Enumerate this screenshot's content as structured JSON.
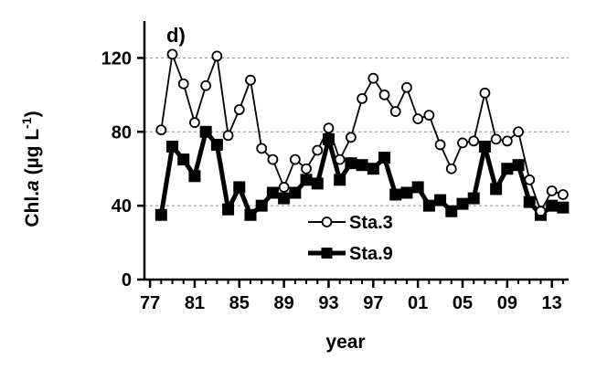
{
  "chart_data": {
    "type": "line",
    "panel_label": "d)",
    "xlabel": "year",
    "ylabel_main": "Chl.",
    "ylabel_italic": "a",
    "ylabel_unit": " (µg L",
    "ylabel_sup": "-1",
    "ylabel_close": ")",
    "ylim": [
      0,
      140
    ],
    "yticks": [
      0,
      40,
      80,
      120
    ],
    "xlim": [
      1976.5,
      2014.5
    ],
    "xticks": [
      1977,
      1981,
      1985,
      1989,
      1993,
      1997,
      2001,
      2005,
      2009,
      2013
    ],
    "xtick_labels": [
      "77",
      "81",
      "85",
      "89",
      "93",
      "97",
      "01",
      "05",
      "09",
      "13"
    ],
    "grid": "horizontal dashed",
    "legend_position": "lower-middle",
    "x": [
      1978,
      1979,
      1980,
      1981,
      1982,
      1983,
      1984,
      1985,
      1986,
      1987,
      1988,
      1989,
      1990,
      1991,
      1992,
      1993,
      1994,
      1995,
      1996,
      1997,
      1998,
      1999,
      2000,
      2001,
      2002,
      2003,
      2004,
      2005,
      2006,
      2007,
      2008,
      2009,
      2010,
      2011,
      2012,
      2013,
      2014
    ],
    "series": [
      {
        "name": "Sta.3",
        "marker": "open-circle",
        "color": "#000000",
        "values": [
          81,
          122,
          106,
          85,
          105,
          121,
          78,
          92,
          108,
          71,
          65,
          50,
          65,
          60,
          70,
          82,
          65,
          77,
          98,
          109,
          100,
          91,
          104,
          87,
          89,
          73,
          60,
          74,
          75,
          101,
          76,
          75,
          80,
          54,
          37,
          48,
          46
        ]
      },
      {
        "name": "Sta.9",
        "marker": "filled-square",
        "color": "#000000",
        "values": [
          35,
          72,
          65,
          56,
          80,
          73,
          38,
          50,
          35,
          40,
          47,
          44,
          47,
          54,
          52,
          76,
          54,
          63,
          62,
          60,
          66,
          46,
          47,
          50,
          40,
          43,
          37,
          41,
          44,
          72,
          49,
          60,
          62,
          42,
          35,
          40,
          39
        ]
      }
    ]
  }
}
